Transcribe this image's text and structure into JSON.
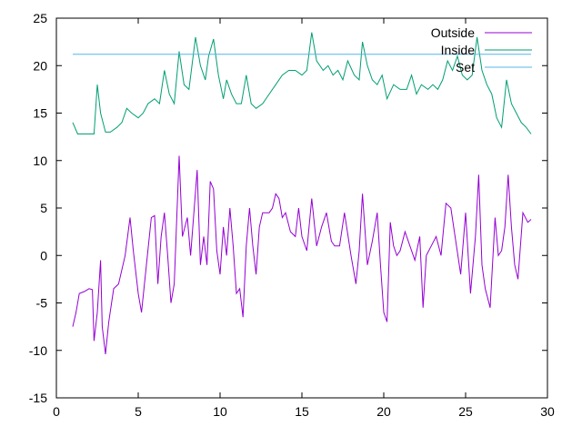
{
  "chart_data": {
    "type": "line",
    "title": "",
    "xlabel": "",
    "ylabel": "",
    "xlim": [
      0,
      30
    ],
    "ylim": [
      -15,
      25
    ],
    "x_ticks": [
      0,
      5,
      10,
      15,
      20,
      25,
      30
    ],
    "y_ticks": [
      -15,
      -10,
      -5,
      0,
      5,
      10,
      15,
      20,
      25
    ],
    "grid": false,
    "legend_position": "top-right",
    "series": [
      {
        "name": "Outside",
        "color": "#9400d3",
        "points": [
          [
            1.0,
            -7.5
          ],
          [
            1.2,
            -6.0
          ],
          [
            1.4,
            -4.0
          ],
          [
            1.7,
            -3.8
          ],
          [
            2.0,
            -3.5
          ],
          [
            2.2,
            -3.6
          ],
          [
            2.3,
            -9.0
          ],
          [
            2.5,
            -6.0
          ],
          [
            2.7,
            -0.5
          ],
          [
            2.8,
            -7.5
          ],
          [
            3.0,
            -10.4
          ],
          [
            3.2,
            -7.0
          ],
          [
            3.5,
            -3.5
          ],
          [
            3.8,
            -3.0
          ],
          [
            4.2,
            0.0
          ],
          [
            4.5,
            4.0
          ],
          [
            4.7,
            0.5
          ],
          [
            5.0,
            -4.0
          ],
          [
            5.2,
            -6.0
          ],
          [
            5.5,
            -1.0
          ],
          [
            5.8,
            4.0
          ],
          [
            6.0,
            4.2
          ],
          [
            6.2,
            -3.0
          ],
          [
            6.4,
            2.0
          ],
          [
            6.6,
            4.5
          ],
          [
            6.8,
            0.0
          ],
          [
            7.0,
            -5.0
          ],
          [
            7.2,
            -3.0
          ],
          [
            7.5,
            10.5
          ],
          [
            7.7,
            2.0
          ],
          [
            8.0,
            4.0
          ],
          [
            8.2,
            0.0
          ],
          [
            8.4,
            4.5
          ],
          [
            8.6,
            9.0
          ],
          [
            8.8,
            -1.0
          ],
          [
            9.0,
            2.0
          ],
          [
            9.2,
            -1.0
          ],
          [
            9.4,
            7.8
          ],
          [
            9.6,
            7.0
          ],
          [
            9.8,
            0.5
          ],
          [
            10.0,
            -2.0
          ],
          [
            10.2,
            3.0
          ],
          [
            10.4,
            0.0
          ],
          [
            10.6,
            5.0
          ],
          [
            10.8,
            1.0
          ],
          [
            11.0,
            -4.0
          ],
          [
            11.2,
            -3.5
          ],
          [
            11.4,
            -6.5
          ],
          [
            11.6,
            1.0
          ],
          [
            11.8,
            5.0
          ],
          [
            12.0,
            1.0
          ],
          [
            12.2,
            -2.0
          ],
          [
            12.4,
            3.0
          ],
          [
            12.6,
            4.5
          ],
          [
            13.0,
            4.5
          ],
          [
            13.2,
            5.0
          ],
          [
            13.4,
            6.5
          ],
          [
            13.6,
            6.0
          ],
          [
            13.8,
            4.0
          ],
          [
            14.0,
            4.5
          ],
          [
            14.3,
            2.5
          ],
          [
            14.6,
            2.0
          ],
          [
            14.8,
            5.0
          ],
          [
            15.0,
            2.0
          ],
          [
            15.3,
            0.5
          ],
          [
            15.6,
            6.0
          ],
          [
            15.9,
            1.0
          ],
          [
            16.2,
            3.0
          ],
          [
            16.5,
            4.5
          ],
          [
            16.8,
            1.5
          ],
          [
            17.0,
            1.0
          ],
          [
            17.3,
            1.0
          ],
          [
            17.6,
            4.5
          ],
          [
            18.0,
            0.0
          ],
          [
            18.3,
            -3.0
          ],
          [
            18.5,
            0.5
          ],
          [
            18.7,
            6.5
          ],
          [
            19.0,
            -1.0
          ],
          [
            19.3,
            1.5
          ],
          [
            19.6,
            4.5
          ],
          [
            19.8,
            -1.0
          ],
          [
            20.0,
            -6.0
          ],
          [
            20.2,
            -7.0
          ],
          [
            20.4,
            3.5
          ],
          [
            20.6,
            1.0
          ],
          [
            20.8,
            0.0
          ],
          [
            21.0,
            0.5
          ],
          [
            21.3,
            2.5
          ],
          [
            21.6,
            1.0
          ],
          [
            21.9,
            -0.5
          ],
          [
            22.2,
            2.0
          ],
          [
            22.4,
            -5.5
          ],
          [
            22.6,
            0.0
          ],
          [
            22.9,
            1.0
          ],
          [
            23.2,
            2.0
          ],
          [
            23.5,
            0.0
          ],
          [
            23.8,
            5.5
          ],
          [
            24.1,
            5.0
          ],
          [
            24.4,
            1.5
          ],
          [
            24.7,
            -2.0
          ],
          [
            25.0,
            4.5
          ],
          [
            25.3,
            -4.0
          ],
          [
            25.6,
            2.0
          ],
          [
            25.8,
            8.5
          ],
          [
            26.0,
            -1.0
          ],
          [
            26.2,
            -3.5
          ],
          [
            26.5,
            -5.5
          ],
          [
            26.8,
            4.0
          ],
          [
            27.0,
            0.0
          ],
          [
            27.2,
            0.5
          ],
          [
            27.4,
            3.0
          ],
          [
            27.6,
            8.5
          ],
          [
            27.8,
            3.0
          ],
          [
            28.0,
            -1.0
          ],
          [
            28.2,
            -2.5
          ],
          [
            28.5,
            4.5
          ],
          [
            28.8,
            3.5
          ],
          [
            29.0,
            3.8
          ]
        ]
      },
      {
        "name": "Inside",
        "color": "#009e73",
        "points": [
          [
            1.0,
            14.0
          ],
          [
            1.3,
            12.8
          ],
          [
            1.6,
            12.8
          ],
          [
            2.0,
            12.8
          ],
          [
            2.3,
            12.8
          ],
          [
            2.5,
            18.0
          ],
          [
            2.7,
            15.0
          ],
          [
            3.0,
            13.0
          ],
          [
            3.3,
            13.0
          ],
          [
            3.7,
            13.5
          ],
          [
            4.0,
            14.0
          ],
          [
            4.3,
            15.5
          ],
          [
            4.6,
            15.0
          ],
          [
            5.0,
            14.5
          ],
          [
            5.3,
            15.0
          ],
          [
            5.6,
            16.0
          ],
          [
            6.0,
            16.5
          ],
          [
            6.3,
            16.0
          ],
          [
            6.6,
            19.5
          ],
          [
            6.9,
            17.0
          ],
          [
            7.2,
            16.0
          ],
          [
            7.5,
            21.5
          ],
          [
            7.8,
            18.0
          ],
          [
            8.1,
            17.5
          ],
          [
            8.5,
            23.0
          ],
          [
            8.8,
            20.0
          ],
          [
            9.1,
            18.5
          ],
          [
            9.3,
            21.0
          ],
          [
            9.6,
            22.8
          ],
          [
            9.9,
            19.0
          ],
          [
            10.2,
            16.5
          ],
          [
            10.4,
            18.5
          ],
          [
            10.7,
            17.0
          ],
          [
            11.0,
            16.0
          ],
          [
            11.3,
            16.0
          ],
          [
            11.6,
            19.0
          ],
          [
            11.9,
            16.0
          ],
          [
            12.2,
            15.5
          ],
          [
            12.6,
            16.0
          ],
          [
            13.0,
            17.0
          ],
          [
            13.4,
            18.0
          ],
          [
            13.8,
            19.0
          ],
          [
            14.2,
            19.5
          ],
          [
            14.6,
            19.5
          ],
          [
            15.0,
            19.0
          ],
          [
            15.3,
            19.5
          ],
          [
            15.6,
            23.5
          ],
          [
            15.9,
            20.5
          ],
          [
            16.3,
            19.5
          ],
          [
            16.6,
            20.0
          ],
          [
            16.9,
            19.0
          ],
          [
            17.2,
            19.5
          ],
          [
            17.5,
            18.5
          ],
          [
            17.8,
            20.5
          ],
          [
            18.2,
            19.0
          ],
          [
            18.5,
            18.5
          ],
          [
            18.7,
            22.5
          ],
          [
            19.0,
            20.0
          ],
          [
            19.3,
            18.5
          ],
          [
            19.6,
            18.0
          ],
          [
            19.9,
            19.0
          ],
          [
            20.2,
            16.5
          ],
          [
            20.6,
            18.0
          ],
          [
            21.0,
            17.5
          ],
          [
            21.4,
            17.5
          ],
          [
            21.7,
            19.0
          ],
          [
            22.0,
            17.0
          ],
          [
            22.3,
            18.0
          ],
          [
            22.7,
            17.5
          ],
          [
            23.0,
            18.0
          ],
          [
            23.3,
            17.5
          ],
          [
            23.6,
            18.5
          ],
          [
            23.9,
            20.5
          ],
          [
            24.2,
            19.5
          ],
          [
            24.5,
            21.0
          ],
          [
            24.8,
            19.0
          ],
          [
            25.1,
            18.5
          ],
          [
            25.4,
            19.0
          ],
          [
            25.7,
            23.0
          ],
          [
            26.0,
            19.5
          ],
          [
            26.3,
            18.0
          ],
          [
            26.6,
            17.0
          ],
          [
            26.9,
            14.5
          ],
          [
            27.2,
            13.5
          ],
          [
            27.5,
            18.5
          ],
          [
            27.8,
            16.0
          ],
          [
            28.1,
            15.0
          ],
          [
            28.4,
            14.0
          ],
          [
            28.7,
            13.5
          ],
          [
            29.0,
            12.8
          ]
        ]
      },
      {
        "name": "Set",
        "color": "#56b4e9",
        "points": [
          [
            1.0,
            21.2
          ],
          [
            2.0,
            21.2
          ],
          [
            3.0,
            21.2
          ],
          [
            4.0,
            21.2
          ],
          [
            5.0,
            21.2
          ],
          [
            6.0,
            21.2
          ],
          [
            7.0,
            21.2
          ],
          [
            8.0,
            21.2
          ],
          [
            9.0,
            21.2
          ],
          [
            10.0,
            21.2
          ],
          [
            11.0,
            21.2
          ],
          [
            12.0,
            21.2
          ],
          [
            13.0,
            21.2
          ],
          [
            14.0,
            21.2
          ],
          [
            15.0,
            21.2
          ],
          [
            16.0,
            21.2
          ],
          [
            17.0,
            21.2
          ],
          [
            18.0,
            21.2
          ],
          [
            19.0,
            21.2
          ],
          [
            20.0,
            21.2
          ],
          [
            21.0,
            21.2
          ],
          [
            22.0,
            21.2
          ],
          [
            23.0,
            21.2
          ],
          [
            24.0,
            21.2
          ],
          [
            25.0,
            21.2
          ],
          [
            26.0,
            21.2
          ],
          [
            27.0,
            21.2
          ],
          [
            28.0,
            21.2
          ],
          [
            29.0,
            21.2
          ]
        ]
      }
    ]
  }
}
